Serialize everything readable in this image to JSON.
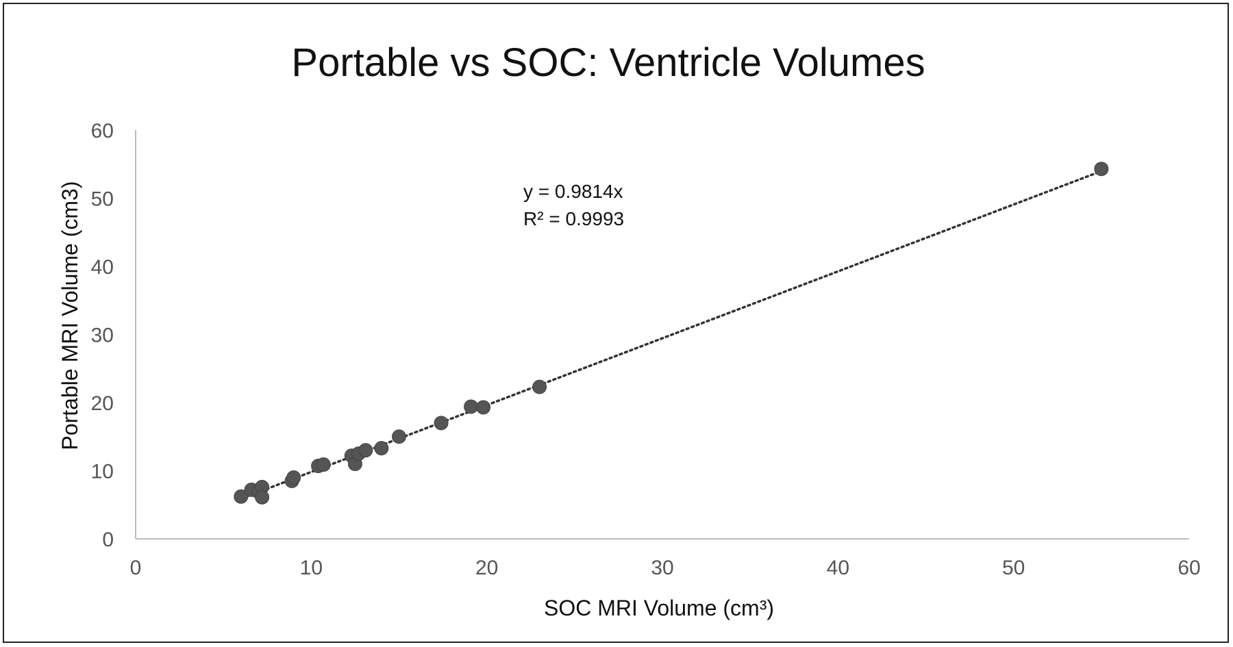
{
  "chart_data": {
    "type": "scatter",
    "title": "Portable vs SOC: Ventricle Volumes",
    "xlabel": "SOC MRI Volume (cm³)",
    "ylabel": "Portable MRI Volume (cm3)",
    "xlim": [
      0,
      60
    ],
    "ylim": [
      0,
      60
    ],
    "xticks": [
      0,
      10,
      20,
      30,
      40,
      50,
      60
    ],
    "yticks": [
      0,
      10,
      20,
      30,
      40,
      50,
      60
    ],
    "grid": false,
    "legend": "none",
    "trendline": {
      "slope": 0.9814,
      "intercept": 0,
      "style": "dotted",
      "x_range": [
        6,
        55
      ]
    },
    "annotations": [
      "y = 0.9814x",
      "R² = 0.9993"
    ],
    "marker_color": "#555555",
    "series": [
      {
        "points": [
          {
            "x": 6.0,
            "y": 6.2
          },
          {
            "x": 6.6,
            "y": 7.2
          },
          {
            "x": 7.0,
            "y": 6.9
          },
          {
            "x": 7.2,
            "y": 7.6
          },
          {
            "x": 7.2,
            "y": 6.1
          },
          {
            "x": 8.9,
            "y": 8.5
          },
          {
            "x": 9.0,
            "y": 9.0
          },
          {
            "x": 10.4,
            "y": 10.7
          },
          {
            "x": 10.7,
            "y": 10.9
          },
          {
            "x": 12.3,
            "y": 12.2
          },
          {
            "x": 12.5,
            "y": 11.0
          },
          {
            "x": 12.7,
            "y": 12.5
          },
          {
            "x": 13.1,
            "y": 13.0
          },
          {
            "x": 14.0,
            "y": 13.3
          },
          {
            "x": 15.0,
            "y": 15.0
          },
          {
            "x": 17.4,
            "y": 17.0
          },
          {
            "x": 19.1,
            "y": 19.4
          },
          {
            "x": 19.8,
            "y": 19.3
          },
          {
            "x": 23.0,
            "y": 22.3
          },
          {
            "x": 55.0,
            "y": 54.3
          }
        ]
      }
    ]
  }
}
